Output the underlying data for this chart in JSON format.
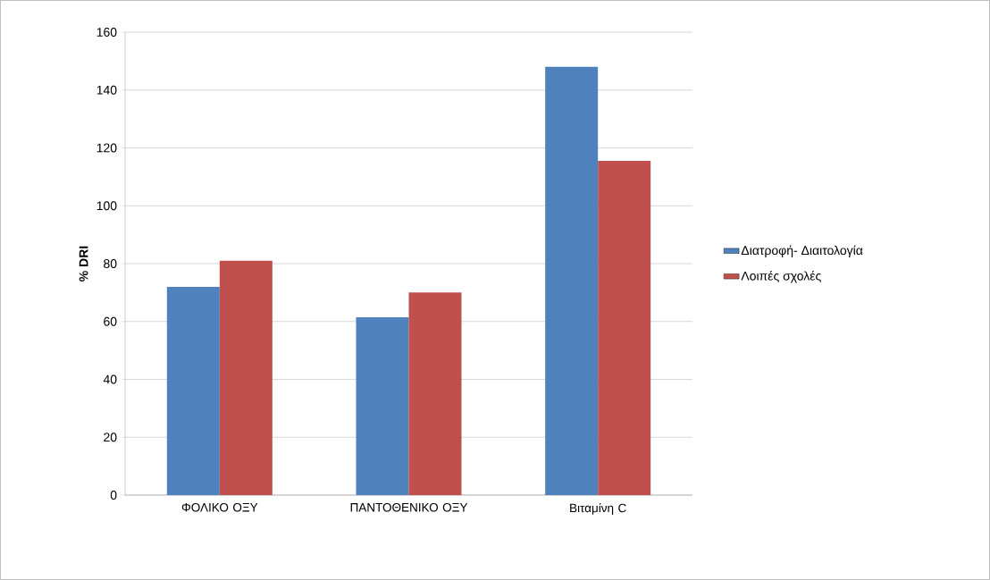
{
  "chart_data": {
    "type": "bar",
    "ylabel": "% DRI",
    "categories": [
      "ΦΟΛΙΚΟ ΟΞΥ",
      "ΠΑΝΤΟΘΕΝΙΚΟ ΟΞΥ",
      "Βιταμίνη C"
    ],
    "series": [
      {
        "name": "Διατροφή- Διαιτολογία",
        "color": "#4f81bd",
        "values": [
          72,
          61.5,
          148
        ]
      },
      {
        "name": "Λοιπές σχολές",
        "color": "#c0504d",
        "values": [
          81,
          70,
          115.5
        ]
      }
    ],
    "ylim": [
      0,
      160
    ],
    "yticks": [
      0,
      20,
      40,
      60,
      80,
      100,
      120,
      140,
      160
    ],
    "grid": "y",
    "legend": "right"
  }
}
